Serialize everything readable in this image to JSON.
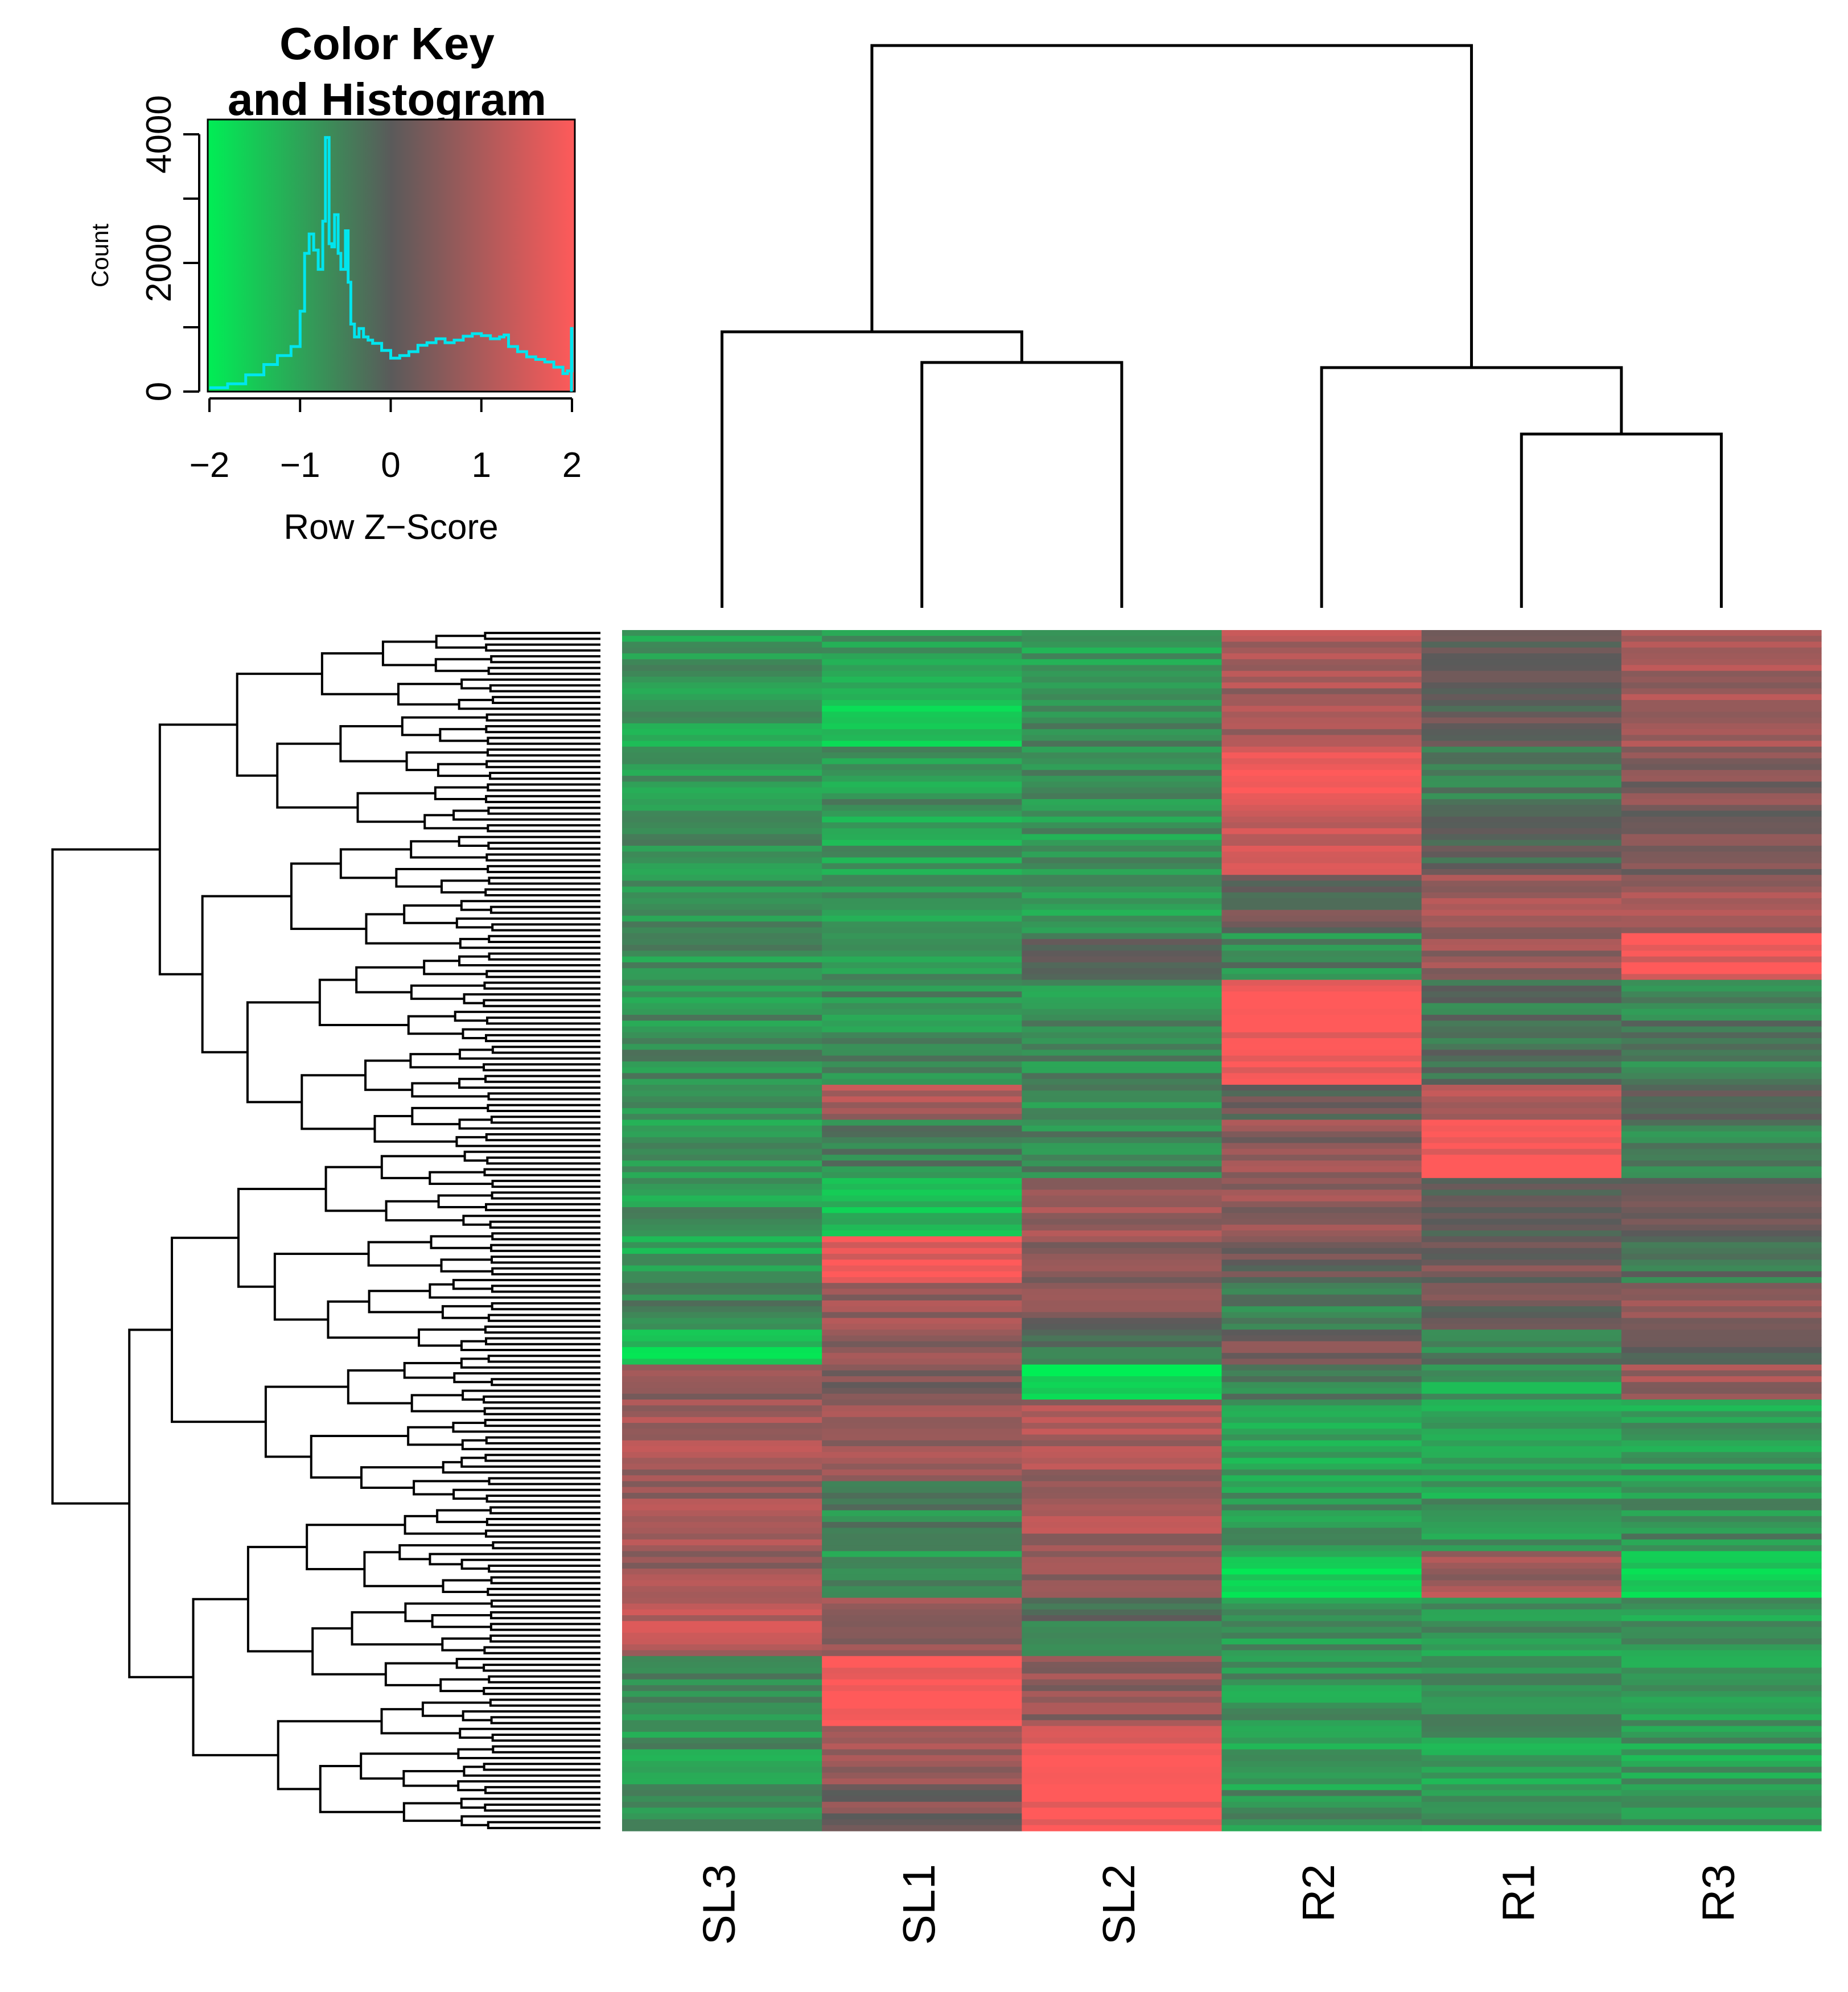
{
  "chart_data": {
    "type": "heatmap",
    "title": "",
    "color_key": {
      "title_line1": "Color Key",
      "title_line2": "and Histogram",
      "xlabel": "Row Z−Score",
      "ylabel": "Count",
      "xlim": [
        -2,
        2
      ],
      "ylim": [
        0,
        4000
      ],
      "xticks": [
        -2,
        -1,
        0,
        1,
        2
      ],
      "xtick_labels": [
        "−2",
        "−1",
        "0",
        "1",
        "2"
      ],
      "yticks": [
        0,
        2000,
        4000
      ],
      "ytick_labels": [
        "0",
        "2000",
        "4000"
      ],
      "low_color": "#00ee55",
      "mid_color": "#5a5a5a",
      "high_color": "#ff5a5a",
      "histogram_color": "#00e5ee",
      "histogram": {
        "x": [
          -2.0,
          -1.8,
          -1.6,
          -1.4,
          -1.25,
          -1.1,
          -1.0,
          -0.95,
          -0.9,
          -0.85,
          -0.8,
          -0.75,
          -0.72,
          -0.68,
          -0.65,
          -0.62,
          -0.58,
          -0.55,
          -0.5,
          -0.47,
          -0.44,
          -0.4,
          -0.35,
          -0.3,
          -0.25,
          -0.2,
          -0.1,
          0.0,
          0.1,
          0.2,
          0.3,
          0.4,
          0.5,
          0.6,
          0.7,
          0.8,
          0.9,
          1.0,
          1.1,
          1.2,
          1.25,
          1.3,
          1.4,
          1.5,
          1.6,
          1.7,
          1.8,
          1.9,
          1.95,
          2.0
        ],
        "y": [
          60,
          120,
          260,
          420,
          560,
          700,
          1250,
          2150,
          2450,
          2200,
          1900,
          2650,
          3950,
          2300,
          2250,
          2750,
          2150,
          1900,
          2500,
          1700,
          1050,
          850,
          980,
          850,
          800,
          750,
          640,
          520,
          560,
          620,
          720,
          760,
          820,
          760,
          800,
          860,
          900,
          870,
          820,
          850,
          880,
          700,
          620,
          540,
          500,
          460,
          380,
          280,
          320,
          980
        ]
      }
    },
    "columns": [
      "SL3",
      "SL1",
      "SL2",
      "R2",
      "R1",
      "R3"
    ],
    "column_dendrogram": {
      "merges": [
        {
          "left": 4,
          "right": 5,
          "height": 1.7
        },
        {
          "left": 1,
          "right": 2,
          "height": 2.4
        },
        {
          "left": 3,
          "right": "4-5",
          "height": 2.35
        },
        {
          "left": 0,
          "right": "1-2",
          "height": 2.7
        },
        {
          "left": "0-1-2",
          "right": "3-4-5",
          "height": 5.5
        }
      ],
      "max_height": 5.5
    },
    "row_blocks": [
      {
        "rows": 12,
        "values": [
          -0.9,
          -0.9,
          -0.9,
          0.9,
          0.1,
          0.9
        ]
      },
      {
        "rows": 8,
        "values": [
          -0.9,
          -1.6,
          -0.5,
          0.8,
          0.0,
          0.7
        ]
      },
      {
        "rows": 10,
        "values": [
          -0.8,
          -0.8,
          -0.8,
          1.9,
          -0.4,
          0.4
        ]
      },
      {
        "rows": 12,
        "values": [
          -0.8,
          -0.9,
          -0.8,
          1.2,
          0.0,
          0.3
        ]
      },
      {
        "rows": 10,
        "values": [
          -0.8,
          -0.9,
          -0.8,
          0.1,
          0.9,
          0.9
        ]
      },
      {
        "rows": 8,
        "values": [
          -0.8,
          -0.8,
          -0.3,
          -0.6,
          0.8,
          1.8
        ]
      },
      {
        "rows": 18,
        "values": [
          -0.7,
          -0.7,
          -0.7,
          2.0,
          -0.3,
          -0.5
        ]
      },
      {
        "rows": 6,
        "values": [
          -0.9,
          1.0,
          -0.6,
          0.2,
          0.9,
          0.2
        ]
      },
      {
        "rows": 10,
        "values": [
          -0.8,
          -0.5,
          -0.6,
          0.6,
          1.9,
          -0.6
        ]
      },
      {
        "rows": 10,
        "values": [
          -0.8,
          -1.2,
          0.7,
          0.6,
          -0.2,
          0.0
        ]
      },
      {
        "rows": 8,
        "values": [
          -1.0,
          1.8,
          0.5,
          0.2,
          0.3,
          -0.4
        ]
      },
      {
        "rows": 8,
        "values": [
          -0.6,
          0.8,
          0.4,
          -0.4,
          0.3,
          0.6
        ]
      },
      {
        "rows": 6,
        "values": [
          -1.5,
          0.6,
          -0.2,
          0.3,
          -0.5,
          0.2
        ]
      },
      {
        "rows": 6,
        "values": [
          0.7,
          0.5,
          -1.7,
          -0.4,
          -0.9,
          0.8
        ]
      },
      {
        "rows": 14,
        "values": [
          0.9,
          0.7,
          0.9,
          -0.9,
          -0.9,
          -0.9
        ]
      },
      {
        "rows": 12,
        "values": [
          0.8,
          -0.6,
          0.9,
          -0.8,
          -0.9,
          -0.7
        ]
      },
      {
        "rows": 8,
        "values": [
          0.8,
          -0.7,
          0.8,
          -1.5,
          0.9,
          -1.7
        ]
      },
      {
        "rows": 10,
        "values": [
          1.2,
          0.6,
          -0.3,
          -0.8,
          -0.8,
          -0.8
        ]
      },
      {
        "rows": 12,
        "values": [
          -0.7,
          1.9,
          0.6,
          -0.8,
          -0.8,
          -0.8
        ]
      },
      {
        "rows": 10,
        "values": [
          -0.8,
          0.9,
          1.9,
          -0.9,
          -0.9,
          -0.9
        ]
      },
      {
        "rows": 8,
        "values": [
          -0.8,
          0.4,
          1.9,
          -0.8,
          -0.8,
          -0.8
        ]
      }
    ]
  }
}
